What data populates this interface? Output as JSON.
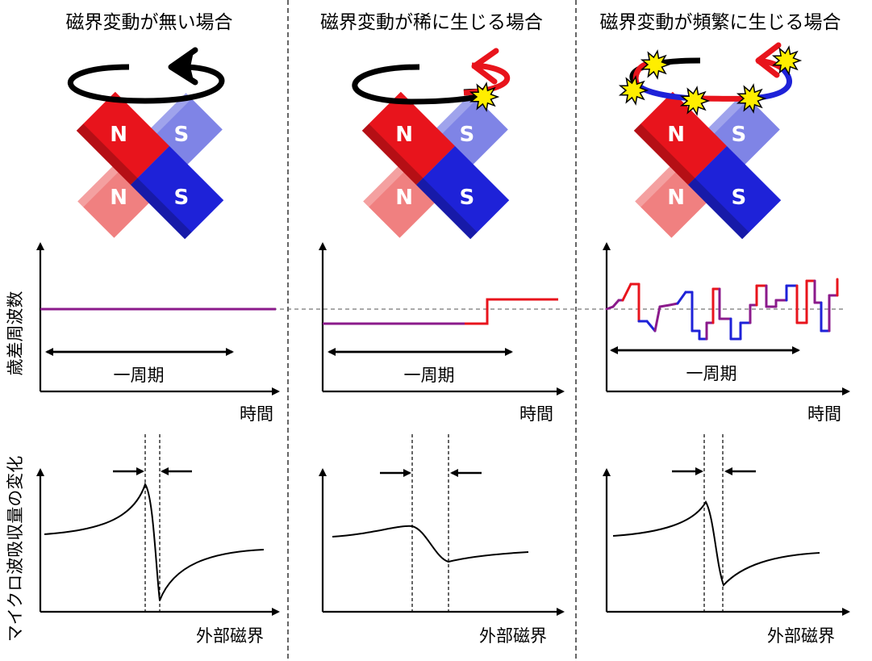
{
  "panels": [
    {
      "title": "磁界変動が無い場合"
    },
    {
      "title": "磁界変動が稀に生じる場合"
    },
    {
      "title": "磁界変動が頻繁に生じる場合"
    }
  ],
  "y_label_top": "歳差周波数",
  "y_label_bottom": "マイクロ波吸収量の変化",
  "x_label_top": "時間",
  "x_label_bottom": "外部磁界",
  "period_label": "一周期",
  "magnet_labels": {
    "north": "N",
    "south": "S"
  },
  "colors": {
    "north": "#e8141c",
    "north_faded": "#f08080",
    "south": "#1e22d8",
    "south_faded": "#7f84e6",
    "trace_purple": "#8b1a8b",
    "trace_red": "#e8141c",
    "trace_blue": "#1e22d8",
    "spark_fill": "#ffee00",
    "axis": "#000000"
  }
}
